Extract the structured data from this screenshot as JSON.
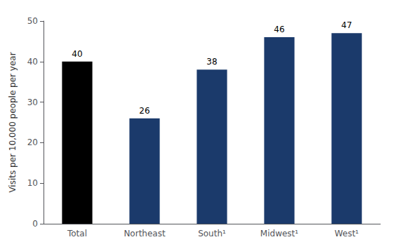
{
  "chart_data": {
    "type": "bar",
    "categories": [
      "Total",
      "Northeast",
      "South¹",
      "Midwest¹",
      "West¹"
    ],
    "values": [
      40,
      26,
      38,
      46,
      47
    ],
    "colors": [
      "#000000",
      "#1b3a6b",
      "#1b3a6b",
      "#1b3a6b",
      "#1b3a6b"
    ],
    "ylabel": "Visits per 10,000 people per year",
    "ylim": [
      0,
      50
    ],
    "yticks": [
      0,
      10,
      20,
      30,
      40,
      50
    ],
    "grid": false,
    "data_labels": true
  }
}
